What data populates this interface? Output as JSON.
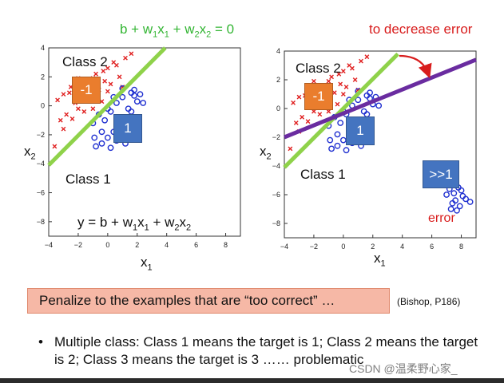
{
  "top_equation": {
    "b": "b + w",
    "s1": "1",
    "m1": "x",
    "s2": "1",
    "m2": " + w",
    "s3": "2",
    "m3": "x",
    "s4": "2",
    "e": " = 0"
  },
  "bottom_equation": {
    "b": "y = b + w",
    "s1": "1",
    "m1": "x",
    "s2": "1",
    "m2": " + w",
    "s3": "2",
    "m3": "x",
    "s4": "2"
  },
  "right_title": "to decrease error",
  "class2_label": "Class 2",
  "class1_label": "Class 1",
  "axis": {
    "x_main": "x",
    "x_sub": "1",
    "y_main": "x",
    "y_sub": "2"
  },
  "tags": {
    "neg": "-1",
    "pos": "1",
    "big": ">>1"
  },
  "error_label": "error",
  "penalize_text": "Penalize to the examples that are “too correct” …",
  "citation": "(Bishop, P186)",
  "bullet_char": "•",
  "bullet_text": "Multiple class: Class 1 means the target is 1; Class 2 means the target is 2; Class 3 means the target is 3 …… problematic",
  "watermark": "CSDN @温柔野心家_",
  "colors": {
    "red_marker": "#e02020",
    "blue_marker": "#1f2fd0",
    "green_line": "#8fd24a",
    "purple_line": "#6a2ca0",
    "arrow": "#d81c1c"
  },
  "chart_data": [
    {
      "type": "scatter",
      "title": "",
      "xlim": [
        -4,
        9
      ],
      "ylim": [
        -9,
        4
      ],
      "x_ticks": [
        "−4",
        "−2",
        "0",
        "2",
        "4",
        "6",
        "8"
      ],
      "y_ticks": [
        "4",
        "2",
        "0",
        "−2",
        "−4",
        "−6",
        "−8"
      ],
      "x_tick_values": [
        -4,
        -2,
        0,
        2,
        4,
        6,
        8
      ],
      "y_tick_values": [
        4,
        2,
        0,
        -2,
        -4,
        -6,
        -8
      ],
      "series": [
        {
          "name": "class2",
          "marker": "x",
          "x": [
            -3.4,
            -3,
            -2.5,
            -2.2,
            -1.8,
            -1.5,
            -1.0,
            -0.6,
            -0.3,
            0.2,
            -2.8,
            -2.0,
            -1.2,
            -0.8,
            0.0,
            0.6,
            -3.2,
            -1.6,
            -0.4,
            0.8,
            1.2,
            -2.4,
            -1.0,
            0.4,
            -2.6,
            -0.2,
            1.6,
            -1.4,
            0.0,
            -3.0,
            1.0,
            -2.0,
            -3.6
          ],
          "y": [
            0.4,
            0.8,
            1.3,
            0.2,
            1.6,
            0.5,
            1.9,
            1.1,
            2.4,
            1.5,
            -0.6,
            -0.2,
            0.8,
            2.2,
            1.0,
            2.8,
            -1.0,
            -0.4,
            0.3,
            2.0,
            3.3,
            -0.9,
            -0.2,
            3.0,
            0.9,
            1.7,
            3.6,
            1.2,
            2.6,
            -1.6,
            1.3,
            1.9,
            -2.8
          ]
        },
        {
          "name": "class1",
          "marker": "o",
          "x": [
            -0.8,
            -0.4,
            0.0,
            0.4,
            0.8,
            1.2,
            1.6,
            2.0,
            2.2,
            0.2,
            0.6,
            1.0,
            1.4,
            1.8,
            -0.2,
            0.6,
            1.4,
            -1.0,
            -0.6,
            0.2,
            1.0,
            1.8,
            0.8,
            -0.4,
            2.4,
            1.2,
            0.0,
            -0.9,
            0.4,
            1.6
          ],
          "y": [
            -2.8,
            -2.6,
            -2.2,
            -1.8,
            -1.4,
            -0.9,
            -0.4,
            0.3,
            0.8,
            -0.4,
            0.2,
            0.6,
            -0.2,
            1.1,
            -1.0,
            -2.4,
            -1.9,
            -1.2,
            -0.6,
            -2.9,
            1.2,
            0.7,
            -1.2,
            -1.8,
            0.2,
            -2.6,
            -0.2,
            -2.2,
            0.6,
            0.9
          ]
        }
      ],
      "lines": [
        {
          "name": "decision boundary",
          "points": [
            [
              -4,
              -4.1
            ],
            [
              3.9,
              4.0
            ]
          ]
        }
      ]
    },
    {
      "type": "scatter",
      "title": "to decrease error",
      "xlim": [
        -4,
        9
      ],
      "ylim": [
        -9,
        4
      ],
      "x_ticks": [
        "−4",
        "−2",
        "0",
        "2",
        "4",
        "6",
        "8"
      ],
      "y_ticks": [
        "4",
        "2",
        "0",
        "−2",
        "−4",
        "−6",
        "−8"
      ],
      "x_tick_values": [
        -4,
        -2,
        0,
        2,
        4,
        6,
        8
      ],
      "y_tick_values": [
        4,
        2,
        0,
        -2,
        -4,
        -6,
        -8
      ],
      "series": [
        {
          "name": "class2",
          "marker": "x",
          "x": [
            -3.4,
            -3,
            -2.5,
            -2.2,
            -1.8,
            -1.5,
            -1.0,
            -0.6,
            -0.3,
            0.2,
            -2.8,
            -2.0,
            -1.2,
            -0.8,
            0.0,
            0.6,
            -3.2,
            -1.6,
            -0.4,
            0.8,
            1.2,
            -2.4,
            -1.0,
            0.4,
            -2.6,
            -0.2,
            1.6,
            -1.4,
            0.0,
            -3.0,
            1.0,
            -2.0,
            -3.6
          ],
          "y": [
            0.4,
            0.8,
            1.3,
            0.2,
            1.6,
            0.5,
            1.9,
            1.1,
            2.4,
            1.5,
            -0.6,
            -0.2,
            0.8,
            2.2,
            1.0,
            2.8,
            -1.0,
            -0.4,
            0.3,
            2.0,
            3.3,
            -0.9,
            -0.2,
            3.0,
            0.9,
            1.7,
            3.6,
            1.2,
            2.6,
            -1.6,
            1.3,
            1.9,
            -2.8
          ]
        },
        {
          "name": "class1",
          "marker": "o",
          "x": [
            -0.8,
            -0.4,
            0.0,
            0.4,
            0.8,
            1.2,
            1.6,
            2.0,
            2.2,
            0.2,
            0.6,
            1.0,
            1.4,
            1.8,
            -0.2,
            0.6,
            1.4,
            -1.0,
            -0.6,
            0.2,
            1.0,
            1.8,
            0.8,
            -0.4,
            2.4,
            1.2,
            0.0,
            -0.9,
            0.4,
            1.6,
            7.2,
            7.5,
            7.8,
            8.1,
            7.6,
            7.9,
            8.3,
            7.4,
            7.0,
            8.6,
            7.7,
            8.0,
            7.3
          ],
          "y": [
            -2.8,
            -2.6,
            -2.2,
            -1.8,
            -1.4,
            -0.9,
            -0.4,
            0.3,
            0.8,
            -0.4,
            0.2,
            0.6,
            -0.2,
            1.1,
            -1.0,
            -2.4,
            -1.9,
            -1.2,
            -0.6,
            -2.9,
            1.2,
            0.7,
            -1.2,
            -1.8,
            0.2,
            -2.6,
            -0.2,
            -2.2,
            0.6,
            0.9,
            -5.6,
            -5.9,
            -5.5,
            -6.1,
            -6.4,
            -6.8,
            -6.3,
            -6.6,
            -6.0,
            -6.5,
            -7.1,
            -5.7,
            -7.0
          ]
        }
      ],
      "lines": [
        {
          "name": "original boundary",
          "points": [
            [
              -4,
              -4.1
            ],
            [
              3.7,
              3.8
            ]
          ]
        },
        {
          "name": "shifted boundary",
          "points": [
            [
              -4,
              -2.0
            ],
            [
              9,
              3.4
            ]
          ]
        }
      ]
    }
  ]
}
